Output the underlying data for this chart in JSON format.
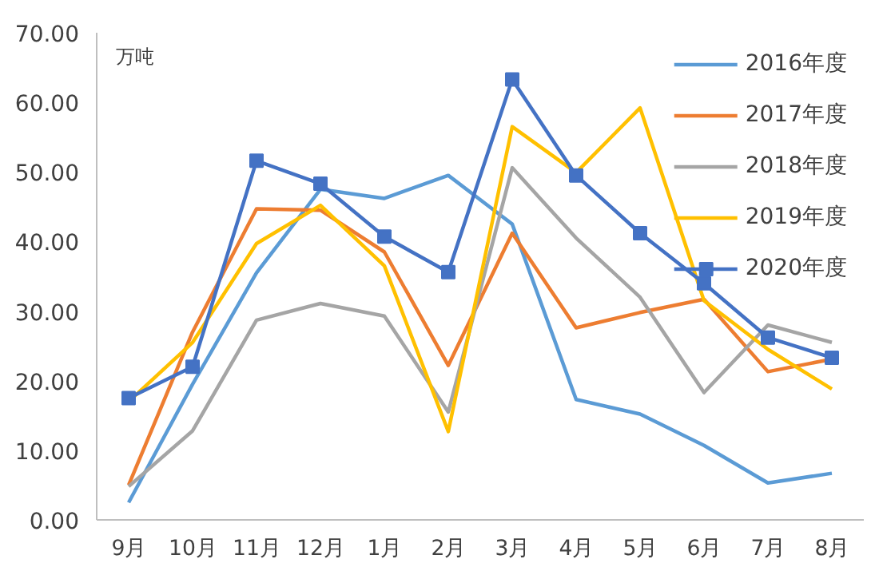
{
  "chart_data": {
    "type": "line",
    "ylabel": "万吨",
    "categories": [
      "9月",
      "10月",
      "11月",
      "12月",
      "1月",
      "2月",
      "3月",
      "4月",
      "5月",
      "6月",
      "7月",
      "8月"
    ],
    "series": [
      {
        "name": "2016年度",
        "color": "#5b9bd5",
        "marker": "none",
        "values": [
          2.5,
          19.5,
          35.5,
          47.5,
          46.2,
          49.5,
          42.5,
          17.3,
          15.2,
          10.7,
          5.3,
          6.7
        ]
      },
      {
        "name": "2017年度",
        "color": "#ed7d31",
        "marker": "none",
        "values": [
          5.0,
          27.0,
          44.7,
          44.5,
          38.5,
          22.2,
          41.2,
          27.6,
          29.8,
          31.7,
          21.3,
          23.1
        ]
      },
      {
        "name": "2018年度",
        "color": "#a5a5a5",
        "marker": "none",
        "values": [
          4.8,
          12.8,
          28.7,
          31.1,
          29.3,
          15.5,
          50.6,
          40.5,
          32.0,
          18.3,
          28.0,
          25.5
        ]
      },
      {
        "name": "2019年度",
        "color": "#ffc000",
        "marker": "none",
        "values": [
          17.0,
          25.5,
          39.7,
          45.2,
          36.5,
          12.7,
          56.5,
          49.9,
          59.2,
          31.5,
          24.5,
          18.8
        ]
      },
      {
        "name": "2020年度",
        "color": "#4472c4",
        "marker": "square",
        "values": [
          17.5,
          22.0,
          51.6,
          48.3,
          40.7,
          35.6,
          63.3,
          49.5,
          41.2,
          34.0,
          26.2,
          23.3
        ]
      }
    ],
    "ylim": [
      0,
      70
    ],
    "yticks": [
      {
        "value": 0,
        "label": "0.00"
      },
      {
        "value": 10,
        "label": "10.00"
      },
      {
        "value": 20,
        "label": "20.00"
      },
      {
        "value": 30,
        "label": "30.00"
      },
      {
        "value": 40,
        "label": "40.00"
      },
      {
        "value": 50,
        "label": "50.00"
      },
      {
        "value": 60,
        "label": "60.00"
      },
      {
        "value": 70,
        "label": "70.00"
      }
    ],
    "grid": false,
    "legend": "top right"
  }
}
